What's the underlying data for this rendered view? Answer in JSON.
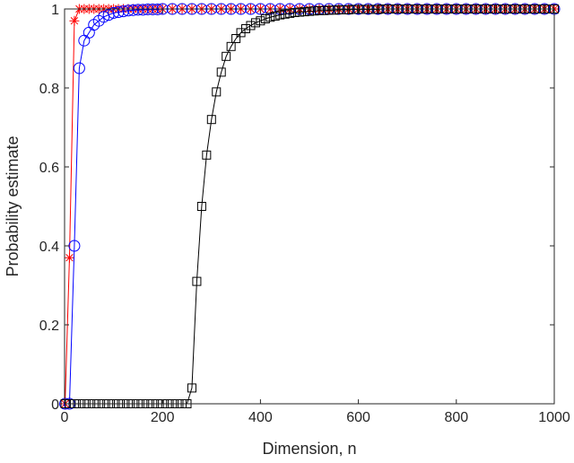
{
  "chart_data": {
    "type": "line",
    "xlabel": "Dimension, n",
    "ylabel": "Probability estimate",
    "xlim": [
      0,
      1000
    ],
    "ylim": [
      0,
      1
    ],
    "xticks": [
      "0",
      "200",
      "400",
      "600",
      "800",
      "1000"
    ],
    "yticks": [
      "0",
      "0.2",
      "0.4",
      "0.6",
      "0.8",
      "1"
    ],
    "grid": false,
    "series": [
      {
        "marker": "asterisk",
        "color": "#ff0000",
        "x": [
          1,
          10,
          20,
          30,
          40,
          50,
          60,
          70,
          80,
          90,
          100,
          110,
          120,
          130,
          140,
          150,
          160,
          170,
          180,
          190,
          200,
          220,
          240,
          260,
          280,
          300,
          320,
          340,
          360,
          380,
          400,
          420,
          440,
          460,
          480,
          500,
          520,
          540,
          560,
          580,
          600,
          620,
          640,
          660,
          680,
          700,
          720,
          740,
          760,
          780,
          800,
          820,
          840,
          860,
          880,
          900,
          920,
          940,
          960,
          980,
          1000
        ],
        "y": [
          0.0,
          0.37,
          0.97,
          1.0,
          1.0,
          1.0,
          1.0,
          1.0,
          1.0,
          1.0,
          1.0,
          1.0,
          1.0,
          1.0,
          1.0,
          1.0,
          1.0,
          1.0,
          1.0,
          1.0,
          1.0,
          1.0,
          1.0,
          1.0,
          1.0,
          1.0,
          1.0,
          1.0,
          1.0,
          1.0,
          1.0,
          1.0,
          1.0,
          1.0,
          1.0,
          1.0,
          1.0,
          1.0,
          1.0,
          1.0,
          1.0,
          1.0,
          1.0,
          1.0,
          1.0,
          1.0,
          1.0,
          1.0,
          1.0,
          1.0,
          1.0,
          1.0,
          1.0,
          1.0,
          1.0,
          1.0,
          1.0,
          1.0,
          1.0,
          1.0,
          1.0
        ]
      },
      {
        "marker": "circle",
        "color": "#0000ff",
        "x": [
          1,
          10,
          20,
          30,
          40,
          50,
          60,
          70,
          80,
          90,
          100,
          110,
          120,
          130,
          140,
          150,
          160,
          170,
          180,
          190,
          200,
          220,
          240,
          260,
          280,
          300,
          320,
          340,
          360,
          380,
          400,
          420,
          440,
          460,
          480,
          500,
          520,
          540,
          560,
          580,
          600,
          620,
          640,
          660,
          680,
          700,
          720,
          740,
          760,
          780,
          800,
          820,
          840,
          860,
          880,
          900,
          920,
          940,
          960,
          980,
          1000
        ],
        "y": [
          0.0,
          0.0,
          0.4,
          0.85,
          0.92,
          0.94,
          0.96,
          0.97,
          0.98,
          0.985,
          0.99,
          0.992,
          0.994,
          0.996,
          0.997,
          0.998,
          0.998,
          0.999,
          0.999,
          0.999,
          1.0,
          1.0,
          1.0,
          1.0,
          1.0,
          1.0,
          1.0,
          1.0,
          1.0,
          1.0,
          1.0,
          1.0,
          1.0,
          1.0,
          1.0,
          1.0,
          1.0,
          1.0,
          1.0,
          1.0,
          1.0,
          1.0,
          1.0,
          1.0,
          1.0,
          1.0,
          1.0,
          1.0,
          1.0,
          1.0,
          1.0,
          1.0,
          1.0,
          1.0,
          1.0,
          1.0,
          1.0,
          1.0,
          1.0,
          1.0,
          1.0
        ]
      },
      {
        "marker": "square",
        "color": "#000000",
        "x": [
          1,
          10,
          20,
          30,
          40,
          50,
          60,
          70,
          80,
          90,
          100,
          110,
          120,
          130,
          140,
          150,
          160,
          170,
          180,
          190,
          200,
          210,
          220,
          230,
          240,
          250,
          260,
          270,
          280,
          290,
          300,
          310,
          320,
          330,
          340,
          350,
          360,
          370,
          380,
          390,
          400,
          410,
          420,
          430,
          440,
          450,
          460,
          470,
          480,
          490,
          500,
          510,
          520,
          530,
          540,
          550,
          560,
          570,
          580,
          590,
          600,
          610,
          620,
          630,
          640,
          650,
          660,
          670,
          680,
          690,
          700,
          710,
          720,
          730,
          740,
          750,
          760,
          770,
          780,
          790,
          800,
          810,
          820,
          830,
          840,
          850,
          860,
          870,
          880,
          890,
          900,
          910,
          920,
          930,
          940,
          950,
          960,
          970,
          980,
          990,
          1000
        ],
        "y": [
          0.0,
          0.0,
          0.0,
          0.0,
          0.0,
          0.0,
          0.0,
          0.0,
          0.0,
          0.0,
          0.0,
          0.0,
          0.0,
          0.0,
          0.0,
          0.0,
          0.0,
          0.0,
          0.0,
          0.0,
          0.0,
          0.0,
          0.0,
          0.0,
          0.0,
          0.0,
          0.04,
          0.31,
          0.5,
          0.63,
          0.72,
          0.79,
          0.84,
          0.88,
          0.905,
          0.925,
          0.94,
          0.95,
          0.958,
          0.965,
          0.97,
          0.975,
          0.979,
          0.982,
          0.985,
          0.987,
          0.989,
          0.991,
          0.992,
          0.993,
          0.994,
          0.995,
          0.996,
          0.996,
          0.997,
          0.997,
          0.998,
          0.998,
          0.998,
          0.999,
          0.999,
          0.999,
          0.999,
          0.999,
          0.999,
          1.0,
          1.0,
          1.0,
          1.0,
          1.0,
          1.0,
          1.0,
          1.0,
          1.0,
          1.0,
          1.0,
          1.0,
          1.0,
          1.0,
          1.0,
          1.0,
          1.0,
          1.0,
          1.0,
          1.0,
          1.0,
          1.0,
          1.0,
          1.0,
          1.0,
          1.0,
          1.0,
          1.0,
          1.0,
          1.0,
          1.0,
          1.0,
          1.0,
          1.0,
          1.0,
          1.0
        ]
      }
    ]
  }
}
